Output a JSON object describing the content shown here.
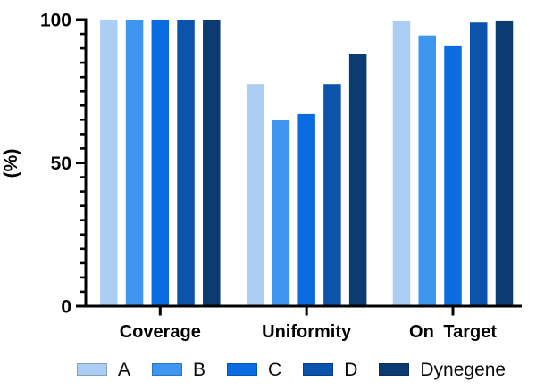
{
  "chart_data": {
    "type": "bar",
    "title": "",
    "xlabel": "",
    "ylabel": "(%)",
    "categories": [
      "Coverage",
      "Uniformity",
      "On Target"
    ],
    "series": [
      {
        "name": "A",
        "color": "#ACCEF4",
        "values": [
          100,
          77.5,
          99.4
        ]
      },
      {
        "name": "B",
        "color": "#3E96F0",
        "values": [
          100,
          65,
          94.5
        ]
      },
      {
        "name": "C",
        "color": "#0A6CE0",
        "values": [
          100,
          67,
          91
        ]
      },
      {
        "name": "D",
        "color": "#0B53AB",
        "values": [
          100,
          77.5,
          99
        ]
      },
      {
        "name": "Dynegene",
        "color": "#0B3B72",
        "values": [
          100,
          88,
          99.7
        ]
      }
    ],
    "ylim": [
      0,
      100
    ],
    "yticks": [
      0,
      50,
      100
    ],
    "minor_tick_step": 5,
    "grid": false,
    "legend_position": "bottom",
    "axis_color": "#000000",
    "background_color": "#ffffff"
  }
}
